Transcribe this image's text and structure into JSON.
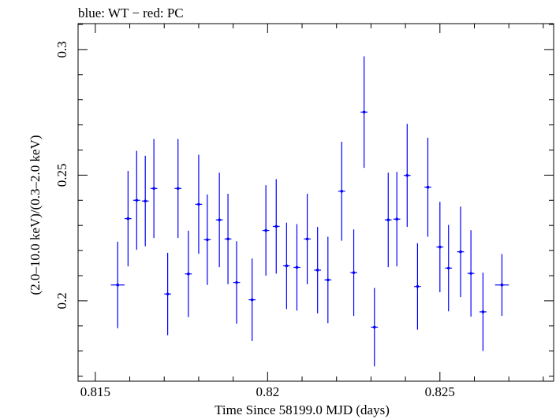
{
  "header": {
    "title": "blue: WT − red: PC"
  },
  "chart_data": {
    "type": "scatter",
    "title": "blue: WT − red: PC",
    "xlabel": "Time Since 58199.0 MJD (days)",
    "ylabel": "(2.0–10.0 keV)/(0.3–2.0 keV)",
    "xlim": [
      0.8145,
      0.8283
    ],
    "ylim": [
      0.168,
      0.3103
    ],
    "xticks": [
      0.815,
      0.82,
      0.825
    ],
    "xtick_labels": [
      "0.815",
      "0.82",
      "0.825"
    ],
    "yticks": [
      0.2,
      0.25,
      0.3
    ],
    "ytick_labels": [
      "0.2",
      "0.25",
      "0.3"
    ],
    "grid": false,
    "series": [
      {
        "name": "WT",
        "color": "#0000ff",
        "points": [
          {
            "x": 0.81565,
            "xerr": 0.0002,
            "y": 0.2063,
            "yerr": 0.0172
          },
          {
            "x": 0.81595,
            "xerr": 0.0001,
            "y": 0.2327,
            "yerr": 0.019
          },
          {
            "x": 0.8162,
            "xerr": 0.0001,
            "y": 0.24,
            "yerr": 0.0197
          },
          {
            "x": 0.81645,
            "xerr": 0.0001,
            "y": 0.2397,
            "yerr": 0.018
          },
          {
            "x": 0.8167,
            "xerr": 0.0001,
            "y": 0.2447,
            "yerr": 0.0197
          },
          {
            "x": 0.8171,
            "xerr": 0.0001,
            "y": 0.2027,
            "yerr": 0.0164
          },
          {
            "x": 0.8174,
            "xerr": 0.0001,
            "y": 0.2447,
            "yerr": 0.0197
          },
          {
            "x": 0.8177,
            "xerr": 0.0001,
            "y": 0.2107,
            "yerr": 0.0172
          },
          {
            "x": 0.818,
            "xerr": 0.0001,
            "y": 0.2384,
            "yerr": 0.0197
          },
          {
            "x": 0.81825,
            "xerr": 0.0001,
            "y": 0.2243,
            "yerr": 0.018
          },
          {
            "x": 0.8186,
            "xerr": 0.0001,
            "y": 0.2322,
            "yerr": 0.0188
          },
          {
            "x": 0.81885,
            "xerr": 0.0001,
            "y": 0.2246,
            "yerr": 0.018
          },
          {
            "x": 0.8191,
            "xerr": 0.0001,
            "y": 0.2073,
            "yerr": 0.0164
          },
          {
            "x": 0.81955,
            "xerr": 0.0001,
            "y": 0.2004,
            "yerr": 0.0164
          },
          {
            "x": 0.81995,
            "xerr": 0.0001,
            "y": 0.228,
            "yerr": 0.018
          },
          {
            "x": 0.82025,
            "xerr": 0.0001,
            "y": 0.2296,
            "yerr": 0.0188
          },
          {
            "x": 0.82055,
            "xerr": 0.0001,
            "y": 0.2139,
            "yerr": 0.0172
          },
          {
            "x": 0.82085,
            "xerr": 0.0001,
            "y": 0.2133,
            "yerr": 0.0172
          },
          {
            "x": 0.82115,
            "xerr": 0.0001,
            "y": 0.2246,
            "yerr": 0.018
          },
          {
            "x": 0.82145,
            "xerr": 0.0001,
            "y": 0.2122,
            "yerr": 0.0172
          },
          {
            "x": 0.82175,
            "xerr": 0.0001,
            "y": 0.2083,
            "yerr": 0.0172
          },
          {
            "x": 0.82215,
            "xerr": 0.0001,
            "y": 0.2436,
            "yerr": 0.0197
          },
          {
            "x": 0.8225,
            "xerr": 0.0001,
            "y": 0.2112,
            "yerr": 0.0172
          },
          {
            "x": 0.8228,
            "xerr": 0.0001,
            "y": 0.2751,
            "yerr": 0.0222
          },
          {
            "x": 0.8231,
            "xerr": 0.0001,
            "y": 0.1895,
            "yerr": 0.0156
          },
          {
            "x": 0.8235,
            "xerr": 0.0001,
            "y": 0.2322,
            "yerr": 0.0188
          },
          {
            "x": 0.82375,
            "xerr": 0.0001,
            "y": 0.2325,
            "yerr": 0.0188
          },
          {
            "x": 0.82405,
            "xerr": 0.0001,
            "y": 0.2499,
            "yerr": 0.0205
          },
          {
            "x": 0.82435,
            "xerr": 0.0001,
            "y": 0.2057,
            "yerr": 0.0172
          },
          {
            "x": 0.82465,
            "xerr": 0.0001,
            "y": 0.2452,
            "yerr": 0.0197
          },
          {
            "x": 0.825,
            "xerr": 0.0001,
            "y": 0.2214,
            "yerr": 0.018
          },
          {
            "x": 0.82525,
            "xerr": 0.0001,
            "y": 0.213,
            "yerr": 0.0172
          },
          {
            "x": 0.8256,
            "xerr": 0.0001,
            "y": 0.2195,
            "yerr": 0.018
          },
          {
            "x": 0.8259,
            "xerr": 0.0001,
            "y": 0.2109,
            "yerr": 0.0172
          },
          {
            "x": 0.82625,
            "xerr": 0.0001,
            "y": 0.1956,
            "yerr": 0.0156
          },
          {
            "x": 0.8268,
            "xerr": 0.0002,
            "y": 0.2063,
            "yerr": 0.0123
          }
        ]
      }
    ]
  }
}
